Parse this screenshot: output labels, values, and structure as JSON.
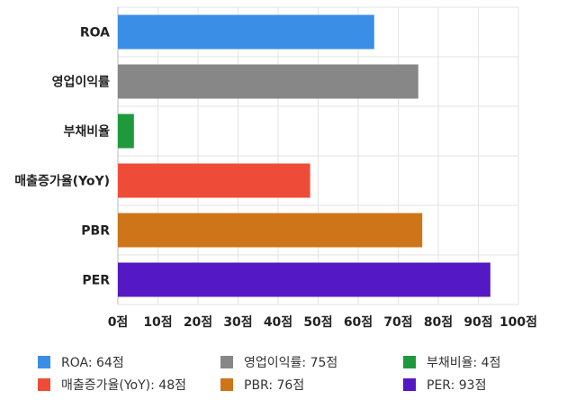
{
  "chart_data": {
    "type": "bar",
    "orientation": "horizontal",
    "categories": [
      "ROA",
      "영업이익률",
      "부채비율",
      "매출증가율(YoY)",
      "PBR",
      "PER"
    ],
    "values": [
      64,
      75,
      4,
      48,
      76,
      93
    ],
    "unit": "점",
    "xlim": [
      0,
      100
    ],
    "xticks": [
      0,
      10,
      20,
      30,
      40,
      50,
      60,
      70,
      80,
      90,
      100
    ],
    "tick_labels": [
      "0점",
      "10점",
      "20점",
      "30점",
      "40점",
      "50점",
      "60점",
      "70점",
      "80점",
      "90점",
      "100점"
    ],
    "colors": [
      "#3a8ee6",
      "#878787",
      "#1e9a3c",
      "#ee4c38",
      "#cd7518",
      "#5418c4"
    ],
    "grid": true,
    "legend_position": "bottom",
    "legend": [
      "ROA: 64점",
      "영업이익률: 75점",
      "부채비율: 4점",
      "매출증가율(YoY): 48점",
      "PBR: 76점",
      "PER: 93점"
    ]
  }
}
